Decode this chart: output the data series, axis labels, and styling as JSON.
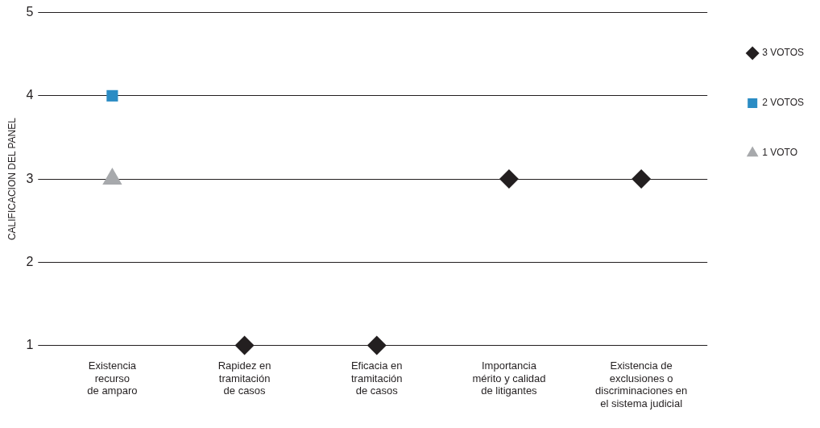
{
  "chart_data": {
    "type": "scatter",
    "ylabel": "CALIFICACION DEL PANEL",
    "categories": [
      "Existencia\nrecurso\nde amparo",
      "Rapidez en\ntramitación\nde casos",
      "Eficacia en\ntramitación\nde casos",
      "Importancia\nmérito y calidad\nde litigantes",
      "Existencia de\nexclusiones o\ndiscriminaciones en\nel sistema judicial"
    ],
    "series": [
      {
        "name": "3 VOTOS",
        "color": "#231f20",
        "marker": "diamond",
        "values": [
          null,
          1,
          1,
          3,
          3
        ]
      },
      {
        "name": "2 VOTOS",
        "color": "#2b8cc4",
        "marker": "square",
        "values": [
          4,
          null,
          null,
          null,
          null
        ]
      },
      {
        "name": "1 VOTO",
        "color": "#a7a9ac",
        "marker": "triangle",
        "values": [
          3,
          null,
          null,
          null,
          null
        ]
      }
    ],
    "ylim": [
      1,
      5
    ],
    "yticks": [
      1,
      2,
      3,
      4,
      5
    ],
    "grid": "y",
    "legend": "right"
  }
}
